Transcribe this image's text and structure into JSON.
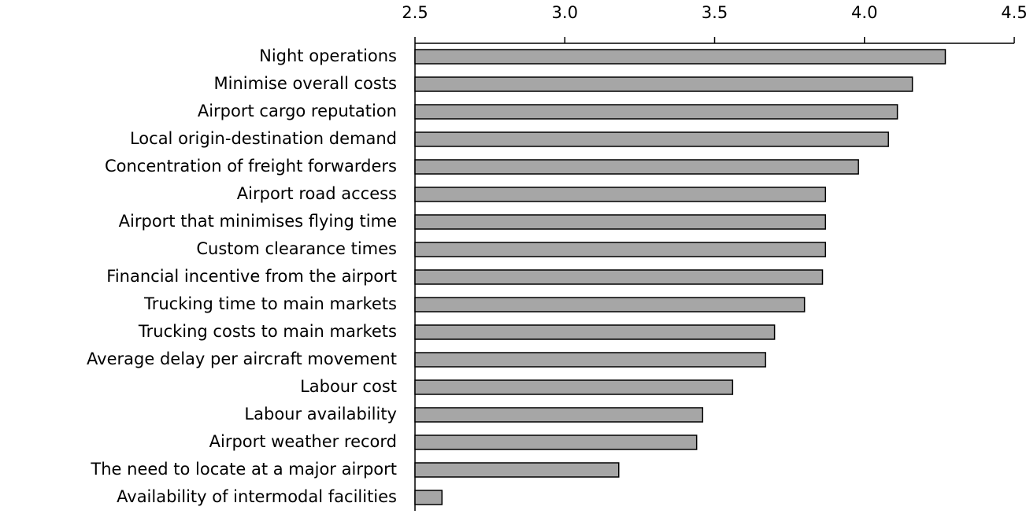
{
  "chart_data": {
    "type": "hbar",
    "categories": [
      "Night operations",
      "Minimise overall costs",
      "Airport cargo reputation",
      "Local origin-destination demand",
      "Concentration of freight forwarders",
      "Airport road access",
      "Airport that minimises flying time",
      "Custom clearance times",
      "Financial incentive from the airport",
      "Trucking time to main markets",
      "Trucking costs to main markets",
      "Average delay per aircraft movement",
      "Labour cost",
      "Labour availability",
      "Airport weather record",
      "The need to locate at a major airport",
      "Availability of intermodal facilities"
    ],
    "values": [
      4.27,
      4.16,
      4.11,
      4.08,
      3.98,
      3.87,
      3.87,
      3.87,
      3.86,
      3.8,
      3.7,
      3.67,
      3.56,
      3.46,
      3.44,
      3.18,
      2.59
    ],
    "color": "#a6a6a6",
    "xlim": [
      2.5,
      4.5
    ],
    "xticks": [
      2.5,
      {
        "value": 3.0,
        "label": "3.0"
      },
      3.5,
      {
        "value": 4.0,
        "label": "4.0"
      },
      4.5
    ]
  }
}
